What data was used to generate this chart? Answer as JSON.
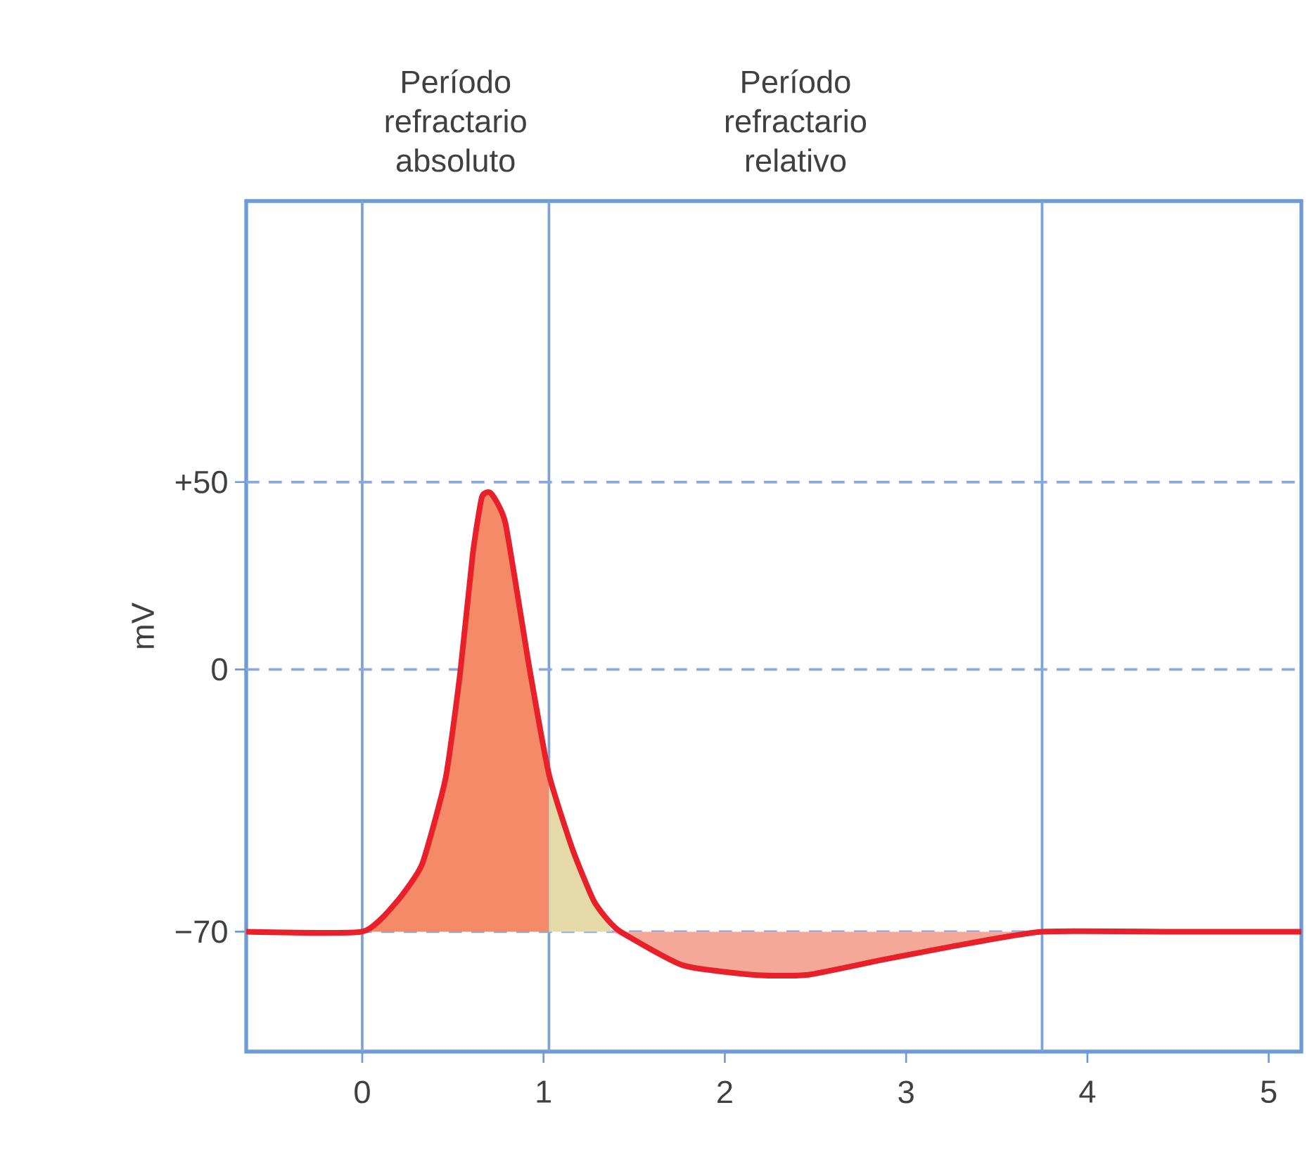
{
  "chart_data": {
    "type": "line",
    "ylabel": "mV",
    "xlim": [
      -0.64,
      5.18
    ],
    "ylim": [
      -102,
      125
    ],
    "xticks": [
      0,
      1,
      2,
      3,
      4,
      5
    ],
    "yticks": [
      {
        "value": 50,
        "label": "+50"
      },
      0,
      {
        "value": -70,
        "label": "−70"
      }
    ],
    "series": [
      {
        "type": "area",
        "color": "#f58a68",
        "x": [
          0,
          0.19,
          0.33,
          0.46,
          0.54,
          0.61,
          0.66,
          0.71,
          0.79,
          0.92,
          1.03,
          1.03
        ],
        "values": [
          -70,
          -62,
          -52,
          -29,
          -1,
          31,
          46,
          47,
          39,
          1,
          -28,
          -70
        ]
      },
      {
        "type": "area",
        "color": "#e6d9a8",
        "x": [
          1.03,
          1.03,
          1.16,
          1.28,
          1.38
        ],
        "values": [
          -70,
          -28,
          -48,
          -62,
          -70
        ]
      },
      {
        "type": "area",
        "color": "#f5a898",
        "x": [
          1.38,
          1.77,
          2.18,
          2.46,
          2.87,
          3.28,
          3.75
        ],
        "values": [
          -70,
          -79,
          -81.6,
          -81.5,
          -77.5,
          -73.7,
          -70
        ]
      },
      {
        "color": "#e8202a",
        "x": [
          -0.64,
          0,
          0.19,
          0.33,
          0.46,
          0.54,
          0.61,
          0.66,
          0.71,
          0.79,
          0.92,
          1.03,
          1.16,
          1.28,
          1.41,
          1.77,
          2.18,
          2.46,
          2.87,
          3.28,
          3.75,
          4.5,
          5.18
        ],
        "values": [
          -70,
          -70,
          -62,
          -52,
          -29,
          -1,
          31,
          46,
          47,
          39,
          1,
          -28,
          -48,
          -62,
          -69.5,
          -79,
          -81.6,
          -81.5,
          -77.5,
          -73.7,
          -70,
          -70,
          -70
        ]
      }
    ],
    "ref_lines": [
      {
        "axis": "x",
        "value": 0,
        "color": "#7da2d8",
        "line_style": "solid"
      },
      {
        "axis": "x",
        "value": 1.03,
        "color": "#7da2d8",
        "line_style": "solid"
      },
      {
        "axis": "x",
        "value": 3.75,
        "color": "#7da2d8",
        "line_style": "solid"
      },
      {
        "axis": "y",
        "value": 50,
        "color": "#8aaade",
        "line_style": "dashed"
      },
      {
        "axis": "y",
        "value": 0,
        "color": "#8aaade",
        "line_style": "dashed"
      },
      {
        "axis": "y",
        "value": -70,
        "color": "#8aaade",
        "line_style": "dashed"
      }
    ],
    "annotations": [
      "Período refractario absoluto",
      "Período refractario relativo"
    ],
    "grid": false
  }
}
